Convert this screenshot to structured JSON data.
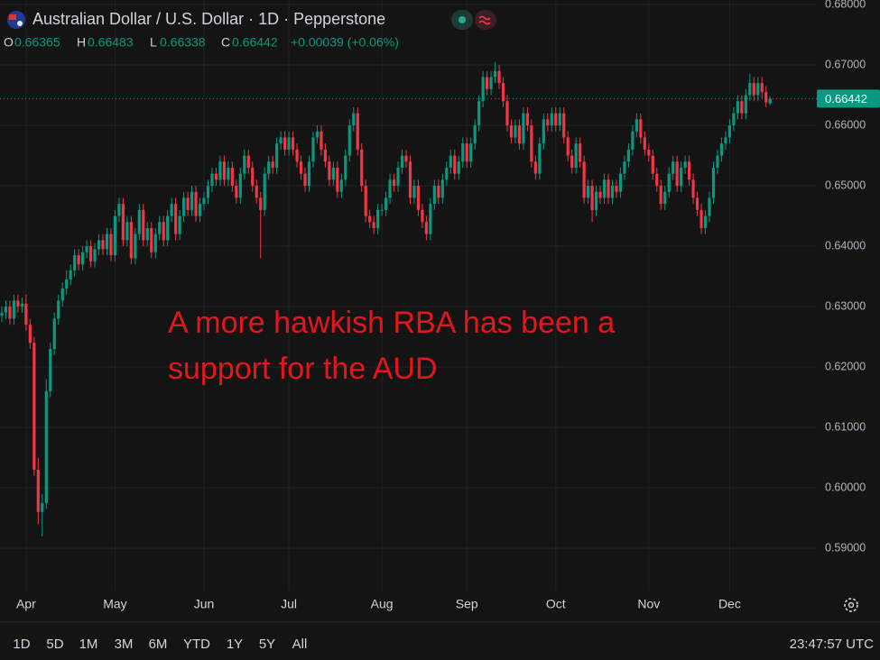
{
  "chart_data": {
    "type": "candlestick",
    "legend": {
      "title": "Australian Dollar / U.S. Dollar · 1D · Pepperstone",
      "ohlc": [
        {
          "label": "O",
          "value": 0.66365
        },
        {
          "label": "H",
          "value": 0.66483
        },
        {
          "label": "L",
          "value": 0.66338
        },
        {
          "label": "C",
          "value": 0.66442
        }
      ],
      "change": "+0.00039 (+0.06%)"
    },
    "annotation": [
      "A more hawkish RBA has been a",
      "support for the AUD"
    ],
    "up_color": "#089981",
    "down_color": "#f23645",
    "grid": true,
    "ylim": [
      0.583,
      0.68075
    ],
    "yticks": [
      {
        "value": 0.59,
        "label": "0.59000"
      },
      {
        "value": 0.6,
        "label": "0.60000"
      },
      {
        "value": 0.61,
        "label": "0.61000"
      },
      {
        "value": 0.62,
        "label": "0.62000"
      },
      {
        "value": 0.63,
        "label": "0.63000"
      },
      {
        "value": 0.64,
        "label": "0.64000"
      },
      {
        "value": 0.65,
        "label": "0.65000"
      },
      {
        "value": 0.66,
        "label": "0.66000"
      },
      {
        "value": 0.67,
        "label": "0.67000"
      },
      {
        "value": 0.68,
        "label": "0.68000"
      }
    ],
    "last_price": {
      "value": 0.66442,
      "label": "0.66442"
    },
    "categories": [
      null,
      null,
      null,
      null,
      null,
      null,
      "Apr",
      null,
      null,
      null,
      null,
      null,
      null,
      null,
      null,
      null,
      null,
      null,
      null,
      null,
      null,
      null,
      null,
      null,
      null,
      null,
      null,
      null,
      "May",
      null,
      null,
      null,
      null,
      null,
      null,
      null,
      null,
      null,
      null,
      null,
      null,
      null,
      null,
      null,
      null,
      null,
      null,
      null,
      null,
      null,
      "Jun",
      null,
      null,
      null,
      null,
      null,
      null,
      null,
      null,
      null,
      null,
      null,
      null,
      null,
      null,
      null,
      null,
      null,
      null,
      null,
      null,
      "Jul",
      null,
      null,
      null,
      null,
      null,
      null,
      null,
      null,
      null,
      null,
      null,
      null,
      null,
      null,
      null,
      null,
      null,
      null,
      null,
      null,
      null,
      null,
      "Aug",
      null,
      null,
      null,
      null,
      null,
      null,
      null,
      null,
      null,
      null,
      null,
      null,
      null,
      null,
      null,
      null,
      null,
      null,
      null,
      null,
      "Sep",
      null,
      null,
      null,
      null,
      null,
      null,
      null,
      null,
      null,
      null,
      null,
      null,
      null,
      null,
      null,
      null,
      null,
      null,
      null,
      null,
      null,
      "Oct",
      null,
      null,
      null,
      null,
      null,
      null,
      null,
      null,
      null,
      null,
      null,
      null,
      null,
      null,
      null,
      null,
      null,
      null,
      null,
      null,
      null,
      null,
      "Nov",
      null,
      null,
      null,
      null,
      null,
      null,
      null,
      null,
      null,
      null,
      null,
      null,
      null,
      null,
      null,
      null,
      null,
      null,
      null,
      "Dec",
      null,
      null,
      null,
      null,
      null,
      null,
      null,
      null,
      null,
      null
    ],
    "values": [
      [
        0.6285,
        0.63,
        0.6275,
        0.629
      ],
      [
        0.629,
        0.631,
        0.628,
        0.63
      ],
      [
        0.63,
        0.631,
        0.627,
        0.628
      ],
      [
        0.628,
        0.632,
        0.627,
        0.631
      ],
      [
        0.631,
        0.632,
        0.629,
        0.63
      ],
      [
        0.63,
        0.6315,
        0.629,
        0.6305
      ],
      [
        0.6305,
        0.632,
        0.626,
        0.627
      ],
      [
        0.627,
        0.628,
        0.623,
        0.624
      ],
      [
        0.624,
        0.625,
        0.602,
        0.603
      ],
      [
        0.603,
        0.605,
        0.594,
        0.596
      ],
      [
        0.596,
        0.599,
        0.592,
        0.5975
      ],
      [
        0.5975,
        0.618,
        0.5965,
        0.616
      ],
      [
        0.616,
        0.624,
        0.615,
        0.623
      ],
      [
        0.623,
        0.629,
        0.622,
        0.628
      ],
      [
        0.628,
        0.632,
        0.627,
        0.631
      ],
      [
        0.631,
        0.634,
        0.63,
        0.633
      ],
      [
        0.633,
        0.636,
        0.632,
        0.6345
      ],
      [
        0.6345,
        0.637,
        0.6335,
        0.636
      ],
      [
        0.636,
        0.6395,
        0.635,
        0.6385
      ],
      [
        0.6385,
        0.6395,
        0.636,
        0.637
      ],
      [
        0.637,
        0.64,
        0.636,
        0.639
      ],
      [
        0.639,
        0.641,
        0.638,
        0.64
      ],
      [
        0.64,
        0.641,
        0.6365,
        0.6375
      ],
      [
        0.6375,
        0.6405,
        0.6365,
        0.6395
      ],
      [
        0.6395,
        0.642,
        0.6385,
        0.641
      ],
      [
        0.641,
        0.642,
        0.6385,
        0.6395
      ],
      [
        0.6395,
        0.643,
        0.6385,
        0.642
      ],
      [
        0.642,
        0.643,
        0.6375,
        0.6385
      ],
      [
        0.6385,
        0.646,
        0.6375,
        0.645
      ],
      [
        0.645,
        0.648,
        0.644,
        0.647
      ],
      [
        0.647,
        0.648,
        0.64,
        0.641
      ],
      [
        0.641,
        0.645,
        0.64,
        0.644
      ],
      [
        0.644,
        0.645,
        0.637,
        0.638
      ],
      [
        0.638,
        0.643,
        0.637,
        0.642
      ],
      [
        0.642,
        0.647,
        0.641,
        0.646
      ],
      [
        0.646,
        0.647,
        0.64,
        0.641
      ],
      [
        0.641,
        0.644,
        0.64,
        0.643
      ],
      [
        0.643,
        0.644,
        0.638,
        0.639
      ],
      [
        0.639,
        0.643,
        0.638,
        0.642
      ],
      [
        0.642,
        0.645,
        0.641,
        0.644
      ],
      [
        0.644,
        0.645,
        0.64,
        0.641
      ],
      [
        0.641,
        0.646,
        0.64,
        0.645
      ],
      [
        0.645,
        0.648,
        0.644,
        0.647
      ],
      [
        0.647,
        0.648,
        0.641,
        0.642
      ],
      [
        0.642,
        0.646,
        0.641,
        0.645
      ],
      [
        0.645,
        0.649,
        0.644,
        0.648
      ],
      [
        0.648,
        0.649,
        0.645,
        0.646
      ],
      [
        0.646,
        0.65,
        0.645,
        0.649
      ],
      [
        0.649,
        0.65,
        0.644,
        0.645
      ],
      [
        0.645,
        0.648,
        0.644,
        0.647
      ],
      [
        0.647,
        0.649,
        0.646,
        0.648
      ],
      [
        0.648,
        0.651,
        0.647,
        0.65
      ],
      [
        0.65,
        0.653,
        0.649,
        0.652
      ],
      [
        0.652,
        0.653,
        0.65,
        0.651
      ],
      [
        0.651,
        0.655,
        0.65,
        0.654
      ],
      [
        0.654,
        0.655,
        0.65,
        0.651
      ],
      [
        0.651,
        0.654,
        0.65,
        0.653
      ],
      [
        0.653,
        0.654,
        0.649,
        0.65
      ],
      [
        0.65,
        0.651,
        0.647,
        0.648
      ],
      [
        0.648,
        0.653,
        0.647,
        0.652
      ],
      [
        0.652,
        0.656,
        0.651,
        0.655
      ],
      [
        0.655,
        0.656,
        0.652,
        0.653
      ],
      [
        0.653,
        0.654,
        0.649,
        0.65
      ],
      [
        0.65,
        0.651,
        0.647,
        0.648
      ],
      [
        0.648,
        0.649,
        0.638,
        0.646
      ],
      [
        0.646,
        0.653,
        0.645,
        0.652
      ],
      [
        0.652,
        0.655,
        0.651,
        0.654
      ],
      [
        0.654,
        0.655,
        0.652,
        0.653
      ],
      [
        0.653,
        0.658,
        0.652,
        0.657
      ],
      [
        0.657,
        0.659,
        0.656,
        0.658
      ],
      [
        0.658,
        0.659,
        0.655,
        0.656
      ],
      [
        0.656,
        0.659,
        0.655,
        0.658
      ],
      [
        0.658,
        0.659,
        0.655,
        0.656
      ],
      [
        0.656,
        0.657,
        0.653,
        0.654
      ],
      [
        0.654,
        0.655,
        0.651,
        0.652
      ],
      [
        0.652,
        0.653,
        0.649,
        0.65
      ],
      [
        0.65,
        0.655,
        0.649,
        0.654
      ],
      [
        0.654,
        0.659,
        0.653,
        0.658
      ],
      [
        0.658,
        0.66,
        0.657,
        0.659
      ],
      [
        0.659,
        0.66,
        0.655,
        0.656
      ],
      [
        0.656,
        0.657,
        0.653,
        0.654
      ],
      [
        0.654,
        0.655,
        0.65,
        0.651
      ],
      [
        0.651,
        0.654,
        0.65,
        0.653
      ],
      [
        0.653,
        0.654,
        0.648,
        0.649
      ],
      [
        0.649,
        0.652,
        0.648,
        0.651
      ],
      [
        0.651,
        0.656,
        0.65,
        0.655
      ],
      [
        0.655,
        0.661,
        0.654,
        0.66
      ],
      [
        0.66,
        0.663,
        0.659,
        0.662
      ],
      [
        0.662,
        0.663,
        0.655,
        0.656
      ],
      [
        0.656,
        0.657,
        0.649,
        0.65
      ],
      [
        0.65,
        0.651,
        0.644,
        0.645
      ],
      [
        0.645,
        0.646,
        0.643,
        0.644
      ],
      [
        0.644,
        0.645,
        0.642,
        0.643
      ],
      [
        0.643,
        0.647,
        0.642,
        0.646
      ],
      [
        0.646,
        0.647,
        0.645,
        0.646
      ],
      [
        0.646,
        0.649,
        0.645,
        0.648
      ],
      [
        0.648,
        0.652,
        0.647,
        0.651
      ],
      [
        0.651,
        0.652,
        0.649,
        0.65
      ],
      [
        0.65,
        0.654,
        0.649,
        0.653
      ],
      [
        0.653,
        0.656,
        0.652,
        0.655
      ],
      [
        0.655,
        0.656,
        0.653,
        0.654
      ],
      [
        0.654,
        0.655,
        0.647,
        0.648
      ],
      [
        0.648,
        0.651,
        0.647,
        0.65
      ],
      [
        0.65,
        0.651,
        0.645,
        0.646
      ],
      [
        0.646,
        0.647,
        0.643,
        0.644
      ],
      [
        0.644,
        0.645,
        0.641,
        0.642
      ],
      [
        0.642,
        0.648,
        0.641,
        0.647
      ],
      [
        0.647,
        0.651,
        0.646,
        0.65
      ],
      [
        0.65,
        0.651,
        0.647,
        0.648
      ],
      [
        0.648,
        0.652,
        0.647,
        0.651
      ],
      [
        0.651,
        0.654,
        0.65,
        0.653
      ],
      [
        0.653,
        0.656,
        0.652,
        0.655
      ],
      [
        0.655,
        0.656,
        0.651,
        0.652
      ],
      [
        0.652,
        0.655,
        0.651,
        0.654
      ],
      [
        0.654,
        0.658,
        0.653,
        0.657
      ],
      [
        0.657,
        0.658,
        0.653,
        0.654
      ],
      [
        0.654,
        0.658,
        0.653,
        0.657
      ],
      [
        0.657,
        0.661,
        0.656,
        0.66
      ],
      [
        0.66,
        0.665,
        0.659,
        0.664
      ],
      [
        0.664,
        0.669,
        0.663,
        0.668
      ],
      [
        0.668,
        0.669,
        0.665,
        0.666
      ],
      [
        0.666,
        0.669,
        0.665,
        0.668
      ],
      [
        0.668,
        0.6705,
        0.667,
        0.669
      ],
      [
        0.669,
        0.67,
        0.666,
        0.667
      ],
      [
        0.667,
        0.668,
        0.663,
        0.664
      ],
      [
        0.664,
        0.665,
        0.659,
        0.66
      ],
      [
        0.66,
        0.661,
        0.657,
        0.658
      ],
      [
        0.658,
        0.661,
        0.657,
        0.66
      ],
      [
        0.66,
        0.661,
        0.656,
        0.657
      ],
      [
        0.657,
        0.663,
        0.656,
        0.662
      ],
      [
        0.662,
        0.663,
        0.659,
        0.66
      ],
      [
        0.66,
        0.661,
        0.653,
        0.654
      ],
      [
        0.654,
        0.655,
        0.651,
        0.652
      ],
      [
        0.652,
        0.658,
        0.651,
        0.657
      ],
      [
        0.657,
        0.662,
        0.656,
        0.661
      ],
      [
        0.661,
        0.662,
        0.659,
        0.66
      ],
      [
        0.66,
        0.663,
        0.659,
        0.662
      ],
      [
        0.662,
        0.663,
        0.659,
        0.66
      ],
      [
        0.66,
        0.663,
        0.659,
        0.662
      ],
      [
        0.662,
        0.663,
        0.657,
        0.658
      ],
      [
        0.658,
        0.659,
        0.654,
        0.655
      ],
      [
        0.655,
        0.656,
        0.652,
        0.653
      ],
      [
        0.653,
        0.658,
        0.652,
        0.657
      ],
      [
        0.657,
        0.658,
        0.653,
        0.654
      ],
      [
        0.654,
        0.655,
        0.647,
        0.648
      ],
      [
        0.648,
        0.651,
        0.647,
        0.65
      ],
      [
        0.65,
        0.651,
        0.644,
        0.646
      ],
      [
        0.646,
        0.65,
        0.645,
        0.649
      ],
      [
        0.649,
        0.65,
        0.647,
        0.648
      ],
      [
        0.648,
        0.652,
        0.647,
        0.651
      ],
      [
        0.651,
        0.652,
        0.647,
        0.648
      ],
      [
        0.648,
        0.651,
        0.647,
        0.65
      ],
      [
        0.65,
        0.651,
        0.648,
        0.649
      ],
      [
        0.649,
        0.653,
        0.648,
        0.652
      ],
      [
        0.652,
        0.655,
        0.651,
        0.654
      ],
      [
        0.654,
        0.657,
        0.653,
        0.656
      ],
      [
        0.656,
        0.66,
        0.655,
        0.659
      ],
      [
        0.659,
        0.662,
        0.658,
        0.661
      ],
      [
        0.661,
        0.662,
        0.657,
        0.658
      ],
      [
        0.658,
        0.659,
        0.655,
        0.656
      ],
      [
        0.656,
        0.657,
        0.654,
        0.655
      ],
      [
        0.655,
        0.656,
        0.651,
        0.652
      ],
      [
        0.652,
        0.653,
        0.649,
        0.65
      ],
      [
        0.65,
        0.651,
        0.646,
        0.647
      ],
      [
        0.647,
        0.65,
        0.646,
        0.649
      ],
      [
        0.649,
        0.653,
        0.648,
        0.652
      ],
      [
        0.652,
        0.655,
        0.651,
        0.654
      ],
      [
        0.654,
        0.655,
        0.649,
        0.65
      ],
      [
        0.65,
        0.654,
        0.649,
        0.653
      ],
      [
        0.653,
        0.655,
        0.652,
        0.654
      ],
      [
        0.654,
        0.655,
        0.65,
        0.651
      ],
      [
        0.651,
        0.652,
        0.647,
        0.648
      ],
      [
        0.648,
        0.649,
        0.645,
        0.646
      ],
      [
        0.646,
        0.647,
        0.642,
        0.643
      ],
      [
        0.643,
        0.646,
        0.642,
        0.645
      ],
      [
        0.645,
        0.649,
        0.644,
        0.648
      ],
      [
        0.648,
        0.654,
        0.647,
        0.653
      ],
      [
        0.653,
        0.656,
        0.652,
        0.655
      ],
      [
        0.655,
        0.658,
        0.654,
        0.657
      ],
      [
        0.657,
        0.659,
        0.656,
        0.658
      ],
      [
        0.658,
        0.661,
        0.657,
        0.66
      ],
      [
        0.66,
        0.663,
        0.659,
        0.662
      ],
      [
        0.662,
        0.665,
        0.661,
        0.664
      ],
      [
        0.664,
        0.665,
        0.661,
        0.662
      ],
      [
        0.662,
        0.666,
        0.661,
        0.665
      ],
      [
        0.665,
        0.6685,
        0.664,
        0.667
      ],
      [
        0.667,
        0.668,
        0.664,
        0.665
      ],
      [
        0.665,
        0.668,
        0.664,
        0.667
      ],
      [
        0.667,
        0.668,
        0.6645,
        0.6655
      ],
      [
        0.6655,
        0.6665,
        0.663,
        0.6638
      ],
      [
        0.66365,
        0.66483,
        0.66338,
        0.66442
      ]
    ]
  },
  "toolbar": {
    "timeframes": [
      "1D",
      "5D",
      "1M",
      "3M",
      "6M",
      "YTD",
      "1Y",
      "5Y",
      "All"
    ],
    "clock": "23:47:57 UTC"
  }
}
